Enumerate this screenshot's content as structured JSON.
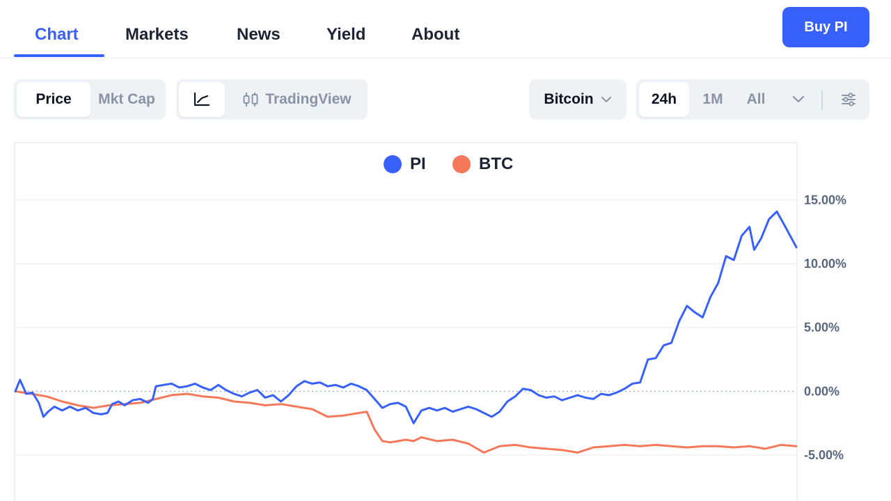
{
  "nav": {
    "tabs": [
      {
        "label": "Chart"
      },
      {
        "label": "Markets"
      },
      {
        "label": "News"
      },
      {
        "label": "Yield"
      },
      {
        "label": "About"
      }
    ],
    "buy_label": "Buy PI"
  },
  "toolbar": {
    "price_label": "Price",
    "mktcap_label": "Mkt Cap",
    "tradingview_label": "TradingView",
    "compare_label": "Bitcoin",
    "range_24h": "24h",
    "range_1m": "1M",
    "range_all": "All"
  },
  "colors": {
    "accent": "#3861fb",
    "pi_line": "#3861fb",
    "btc_line": "#f6785b"
  },
  "icons": [
    "line-chart-icon",
    "candlestick-icon",
    "chevron-down-icon",
    "settings-sliders-icon"
  ],
  "chart_data": {
    "type": "line",
    "ylabel_format": "percent",
    "ylim": [
      -8.6,
      19.5
    ],
    "yticks": [
      {
        "value": 15,
        "label": "15.00%"
      },
      {
        "value": 10,
        "label": "10.00%"
      },
      {
        "value": 5,
        "label": "5.00%"
      },
      {
        "value": 0,
        "label": "0.00%"
      },
      {
        "value": -5,
        "label": "-5.00%"
      }
    ],
    "legend": "top-center",
    "grid": true,
    "x_range": [
      0,
      100
    ],
    "series": [
      {
        "name": "PI",
        "color": "#3861fb",
        "points": [
          [
            0,
            0.0
          ],
          [
            0.6,
            0.9
          ],
          [
            1.4,
            -0.2
          ],
          [
            2.2,
            -0.1
          ],
          [
            3.0,
            -0.9
          ],
          [
            3.6,
            -2.0
          ],
          [
            4.2,
            -1.6
          ],
          [
            5.0,
            -1.2
          ],
          [
            6.0,
            -1.5
          ],
          [
            7.0,
            -1.2
          ],
          [
            8.0,
            -1.5
          ],
          [
            9.0,
            -1.3
          ],
          [
            10.0,
            -1.7
          ],
          [
            11.0,
            -1.8
          ],
          [
            11.8,
            -1.7
          ],
          [
            12.4,
            -1.0
          ],
          [
            13.2,
            -0.8
          ],
          [
            14.0,
            -1.1
          ],
          [
            15.0,
            -0.7
          ],
          [
            16.0,
            -0.6
          ],
          [
            17.0,
            -0.9
          ],
          [
            17.6,
            -0.6
          ],
          [
            18.0,
            0.4
          ],
          [
            19.0,
            0.5
          ],
          [
            20.0,
            0.6
          ],
          [
            21.0,
            0.3
          ],
          [
            22.0,
            0.4
          ],
          [
            23.0,
            0.6
          ],
          [
            24.0,
            0.3
          ],
          [
            25.0,
            0.1
          ],
          [
            26.0,
            0.5
          ],
          [
            27.0,
            0.1
          ],
          [
            28.0,
            -0.2
          ],
          [
            29.0,
            -0.4
          ],
          [
            30.0,
            -0.1
          ],
          [
            31.0,
            0.1
          ],
          [
            32.0,
            -0.5
          ],
          [
            33.0,
            -0.3
          ],
          [
            34.0,
            -0.8
          ],
          [
            35.0,
            -0.3
          ],
          [
            36.0,
            0.4
          ],
          [
            37.0,
            0.8
          ],
          [
            38.0,
            0.6
          ],
          [
            39.0,
            0.7
          ],
          [
            40.0,
            0.4
          ],
          [
            41.0,
            0.5
          ],
          [
            42.0,
            0.3
          ],
          [
            43.0,
            0.6
          ],
          [
            44.0,
            0.4
          ],
          [
            45.0,
            0.1
          ],
          [
            46.0,
            -0.6
          ],
          [
            47.0,
            -1.3
          ],
          [
            48.0,
            -1.0
          ],
          [
            49.0,
            -0.9
          ],
          [
            50.0,
            -1.2
          ],
          [
            51.0,
            -2.5
          ],
          [
            52.0,
            -1.5
          ],
          [
            53.0,
            -1.3
          ],
          [
            54.0,
            -1.5
          ],
          [
            55.0,
            -1.3
          ],
          [
            56.0,
            -1.6
          ],
          [
            57.0,
            -1.4
          ],
          [
            58.0,
            -1.2
          ],
          [
            59.0,
            -1.4
          ],
          [
            60.0,
            -1.7
          ],
          [
            61.0,
            -2.0
          ],
          [
            62.0,
            -1.6
          ],
          [
            63.0,
            -0.8
          ],
          [
            64.0,
            -0.4
          ],
          [
            65.0,
            0.2
          ],
          [
            66.0,
            0.1
          ],
          [
            67.0,
            -0.3
          ],
          [
            68.0,
            -0.5
          ],
          [
            69.0,
            -0.4
          ],
          [
            70.0,
            -0.7
          ],
          [
            71.0,
            -0.5
          ],
          [
            72.0,
            -0.3
          ],
          [
            73.0,
            -0.5
          ],
          [
            74.0,
            -0.6
          ],
          [
            75.0,
            -0.2
          ],
          [
            76.0,
            -0.3
          ],
          [
            77.0,
            -0.1
          ],
          [
            78.0,
            0.2
          ],
          [
            79.0,
            0.6
          ],
          [
            80.0,
            0.7
          ],
          [
            81.0,
            2.5
          ],
          [
            82.0,
            2.6
          ],
          [
            83.0,
            3.6
          ],
          [
            84.0,
            3.8
          ],
          [
            85.0,
            5.5
          ],
          [
            86.0,
            6.7
          ],
          [
            87.0,
            6.2
          ],
          [
            88.0,
            5.8
          ],
          [
            89.0,
            7.4
          ],
          [
            90.0,
            8.5
          ],
          [
            91.0,
            10.6
          ],
          [
            92.0,
            10.3
          ],
          [
            93.0,
            12.2
          ],
          [
            94.0,
            12.9
          ],
          [
            94.6,
            11.1
          ],
          [
            95.5,
            12.0
          ],
          [
            96.5,
            13.5
          ],
          [
            97.5,
            14.1
          ],
          [
            98.5,
            13.0
          ],
          [
            100.0,
            11.3
          ]
        ]
      },
      {
        "name": "BTC",
        "color": "#f6785b",
        "points": [
          [
            0,
            0.0
          ],
          [
            2.0,
            -0.2
          ],
          [
            4.0,
            -0.4
          ],
          [
            6.0,
            -0.8
          ],
          [
            8.0,
            -1.1
          ],
          [
            10.0,
            -1.3
          ],
          [
            12.0,
            -1.1
          ],
          [
            14.0,
            -1.0
          ],
          [
            16.0,
            -0.9
          ],
          [
            18.0,
            -0.6
          ],
          [
            20.0,
            -0.3
          ],
          [
            22.0,
            -0.2
          ],
          [
            24.0,
            -0.4
          ],
          [
            26.0,
            -0.5
          ],
          [
            28.0,
            -0.8
          ],
          [
            30.0,
            -0.9
          ],
          [
            32.0,
            -1.1
          ],
          [
            34.0,
            -1.0
          ],
          [
            36.0,
            -1.2
          ],
          [
            38.0,
            -1.4
          ],
          [
            40.0,
            -2.0
          ],
          [
            42.0,
            -1.9
          ],
          [
            44.0,
            -1.7
          ],
          [
            45.0,
            -1.6
          ],
          [
            46.0,
            -3.0
          ],
          [
            47.0,
            -3.9
          ],
          [
            48.0,
            -4.0
          ],
          [
            49.0,
            -3.9
          ],
          [
            50.0,
            -3.8
          ],
          [
            51.0,
            -3.9
          ],
          [
            52.0,
            -3.6
          ],
          [
            54.0,
            -3.9
          ],
          [
            56.0,
            -3.8
          ],
          [
            58.0,
            -4.1
          ],
          [
            60.0,
            -4.8
          ],
          [
            62.0,
            -4.3
          ],
          [
            64.0,
            -4.2
          ],
          [
            66.0,
            -4.4
          ],
          [
            68.0,
            -4.5
          ],
          [
            70.0,
            -4.6
          ],
          [
            72.0,
            -4.8
          ],
          [
            74.0,
            -4.4
          ],
          [
            76.0,
            -4.3
          ],
          [
            78.0,
            -4.2
          ],
          [
            80.0,
            -4.3
          ],
          [
            82.0,
            -4.2
          ],
          [
            84.0,
            -4.3
          ],
          [
            86.0,
            -4.4
          ],
          [
            88.0,
            -4.3
          ],
          [
            90.0,
            -4.3
          ],
          [
            92.0,
            -4.4
          ],
          [
            94.0,
            -4.3
          ],
          [
            96.0,
            -4.5
          ],
          [
            98.0,
            -4.2
          ],
          [
            100.0,
            -4.3
          ]
        ]
      }
    ]
  }
}
